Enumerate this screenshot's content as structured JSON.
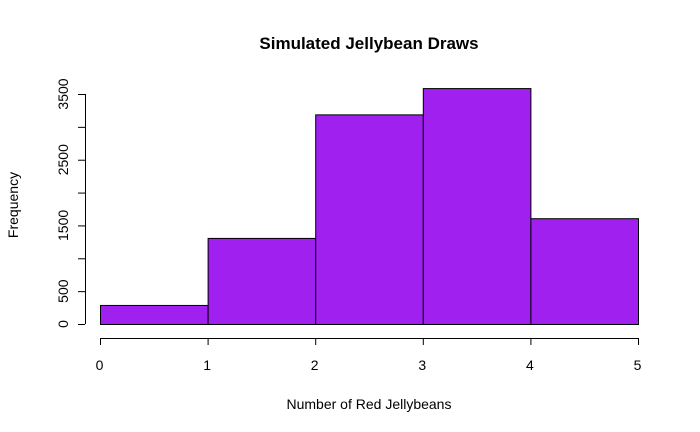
{
  "chart_data": {
    "type": "bar",
    "title": "Simulated Jellybean Draws",
    "xlabel": "Number of Red Jellybeans",
    "ylabel": "Frequency",
    "bins": [
      {
        "from": 0,
        "to": 1,
        "value": 290
      },
      {
        "from": 1,
        "to": 2,
        "value": 1310
      },
      {
        "from": 2,
        "to": 3,
        "value": 3190
      },
      {
        "from": 3,
        "to": 4,
        "value": 3590
      },
      {
        "from": 4,
        "to": 5,
        "value": 1610
      }
    ],
    "xlim": [
      0,
      5
    ],
    "ylim": [
      0,
      3500
    ],
    "x_ticks": [
      "0",
      "1",
      "2",
      "3",
      "4",
      "5"
    ],
    "y_ticks": [
      "0",
      "500",
      "1500",
      "2500",
      "3500"
    ],
    "bar_color": "#a020f0",
    "grid": false,
    "legend": "none"
  }
}
